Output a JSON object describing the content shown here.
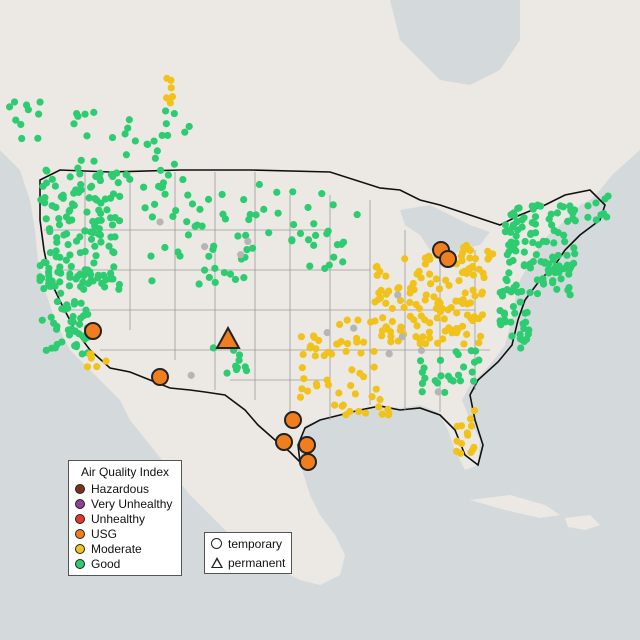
{
  "legend": {
    "title": "Air Quality Index",
    "categories": [
      {
        "label": "Hazardous",
        "color": "#7e2e1e"
      },
      {
        "label": "Very Unhealthy",
        "color": "#8f3f97"
      },
      {
        "label": "Unhealthy",
        "color": "#e8352c"
      },
      {
        "label": "USG",
        "color": "#f07d1e"
      },
      {
        "label": "Moderate",
        "color": "#f1c21b"
      },
      {
        "label": "Good",
        "color": "#2ecc71"
      }
    ]
  },
  "monitor_legend": {
    "temporary": "temporary",
    "permanent": "permanent"
  },
  "colors": {
    "water": "#d4dadc",
    "land": "#ece9e4",
    "border": "#111111",
    "state_line": "#9a9a9a",
    "good": "#2ecc71",
    "moderate": "#f1c21b",
    "usg": "#f07d1e",
    "no_data": "#b5b5b5"
  }
}
